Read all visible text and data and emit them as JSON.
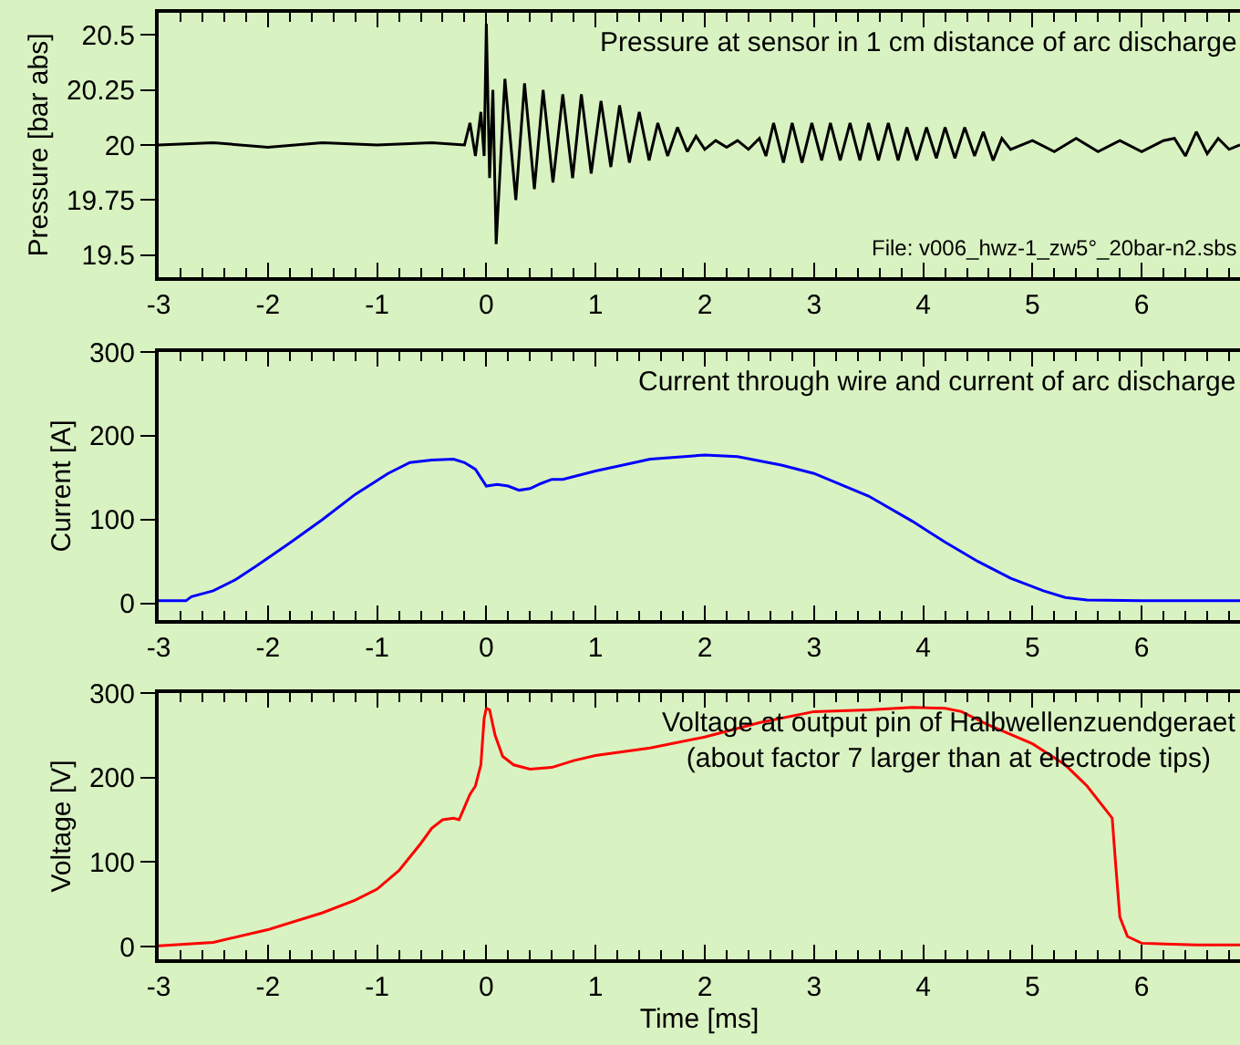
{
  "chart_data": [
    {
      "type": "line",
      "title": "Pressure at sensor in 1 cm distance of arc discharge",
      "ylabel": "Pressure [bar abs]",
      "annotations": [
        "File: v006_hwz-1_zw5°_20bar-n2.sbs"
      ],
      "xlim": [
        -3,
        6.9
      ],
      "xticks": [
        -3,
        -2,
        -1,
        0,
        1,
        2,
        3,
        4,
        5,
        6
      ],
      "ylim": [
        19.4,
        20.6
      ],
      "yticks": [
        19.5,
        20.25,
        20,
        19.75,
        20.5
      ],
      "grid": false,
      "marker": "none",
      "series": [
        {
          "color": "#000000",
          "x": [
            -3,
            -2.5,
            -2,
            -1.5,
            -1,
            -0.5,
            -0.2,
            -0.15,
            -0.1,
            -0.05,
            -0.02,
            0,
            0.03,
            0.06,
            0.09,
            0.17,
            0.27,
            0.35,
            0.44,
            0.52,
            0.61,
            0.7,
            0.79,
            0.87,
            0.96,
            1.05,
            1.14,
            1.22,
            1.31,
            1.4,
            1.49,
            1.57,
            1.66,
            1.75,
            1.84,
            1.92,
            2,
            2.1,
            2.2,
            2.3,
            2.4,
            2.5,
            2.56,
            2.63,
            2.72,
            2.8,
            2.89,
            2.98,
            3.07,
            3.15,
            3.24,
            3.33,
            3.42,
            3.5,
            3.59,
            3.68,
            3.77,
            3.85,
            3.94,
            4.03,
            4.12,
            4.2,
            4.29,
            4.38,
            4.47,
            4.55,
            4.64,
            4.72,
            4.8,
            5,
            5.2,
            5.4,
            5.6,
            5.8,
            6,
            6.2,
            6.3,
            6.4,
            6.5,
            6.6,
            6.7,
            6.8,
            6.9
          ],
          "values": [
            20,
            20.01,
            19.99,
            20.01,
            20,
            20.01,
            20,
            20.1,
            19.95,
            20.15,
            19.95,
            20.55,
            19.85,
            20.25,
            19.55,
            20.3,
            19.75,
            20.28,
            19.8,
            20.25,
            19.83,
            20.23,
            19.85,
            20.23,
            19.87,
            20.2,
            19.9,
            20.18,
            19.92,
            20.15,
            19.93,
            20.1,
            19.95,
            20.08,
            19.97,
            20.04,
            19.98,
            20.02,
            19.99,
            20.02,
            19.98,
            20.03,
            19.95,
            20.1,
            19.92,
            20.1,
            19.92,
            20.1,
            19.93,
            20.1,
            19.93,
            20.1,
            19.93,
            20.1,
            19.93,
            20.1,
            19.93,
            20.08,
            19.93,
            20.08,
            19.94,
            20.08,
            19.94,
            20.08,
            19.95,
            20.06,
            19.93,
            20.03,
            19.98,
            20.02,
            19.97,
            20.03,
            19.97,
            20.02,
            19.97,
            20.02,
            20.03,
            19.95,
            20.06,
            19.96,
            20.03,
            19.98,
            20
          ]
        }
      ]
    },
    {
      "type": "line",
      "title": "Current through wire and current of arc discharge",
      "ylabel": "Current [A]",
      "xlim": [
        -3,
        6.9
      ],
      "xticks": [
        -3,
        -2,
        -1,
        0,
        1,
        2,
        3,
        4,
        5,
        6
      ],
      "ylim": [
        -20,
        300
      ],
      "yticks": [
        0,
        100,
        200,
        300
      ],
      "grid": false,
      "marker": "none",
      "series": [
        {
          "color": "#0000ff",
          "x": [
            -3,
            -2.75,
            -2.7,
            -2.5,
            -2.3,
            -2.1,
            -1.8,
            -1.5,
            -1.2,
            -0.9,
            -0.7,
            -0.5,
            -0.3,
            -0.2,
            -0.1,
            0,
            0.1,
            0.2,
            0.3,
            0.4,
            0.5,
            0.6,
            0.7,
            1,
            1.5,
            2,
            2.3,
            2.7,
            3,
            3.5,
            3.9,
            4.2,
            4.5,
            4.8,
            5.1,
            5.3,
            5.5,
            6,
            6.9
          ],
          "values": [
            3,
            3,
            8,
            15,
            28,
            45,
            72,
            100,
            130,
            155,
            168,
            171,
            172,
            168,
            160,
            140,
            142,
            140,
            135,
            137,
            143,
            148,
            148,
            158,
            172,
            177,
            175,
            165,
            155,
            128,
            98,
            73,
            50,
            30,
            15,
            7,
            4,
            3,
            3
          ]
        }
      ]
    },
    {
      "type": "line",
      "title": "Voltage at output pin of Halbwellenzuendgeraet\n(about factor 7 larger than at electrode tips)",
      "xlabel": "Time [ms]",
      "ylabel": "Voltage [V]",
      "xlim": [
        -3,
        6.9
      ],
      "xticks": [
        -3,
        -2,
        -1,
        0,
        1,
        2,
        3,
        4,
        5,
        6
      ],
      "ylim": [
        -15,
        300
      ],
      "yticks": [
        0,
        100,
        200,
        300
      ],
      "grid": false,
      "marker": "none",
      "series": [
        {
          "color": "#ff0000",
          "x": [
            -3,
            -2.5,
            -2,
            -1.5,
            -1.2,
            -1,
            -0.8,
            -0.6,
            -0.5,
            -0.4,
            -0.3,
            -0.25,
            -0.2,
            -0.15,
            -0.1,
            -0.05,
            -0.02,
            0,
            0.03,
            0.08,
            0.15,
            0.25,
            0.4,
            0.6,
            0.8,
            1,
            1.5,
            2,
            2.5,
            3,
            3.5,
            3.9,
            4.2,
            4.35,
            4.6,
            5,
            5.3,
            5.5,
            5.73,
            5.76,
            5.8,
            5.87,
            6,
            6.5,
            6.9
          ],
          "values": [
            1,
            5,
            20,
            40,
            55,
            68,
            90,
            122,
            140,
            150,
            152,
            150,
            165,
            180,
            190,
            215,
            270,
            282,
            280,
            250,
            225,
            215,
            210,
            212,
            220,
            226,
            235,
            248,
            265,
            278,
            280,
            283,
            282,
            278,
            262,
            240,
            215,
            190,
            152,
            100,
            35,
            12,
            4,
            2,
            2
          ]
        }
      ]
    }
  ]
}
